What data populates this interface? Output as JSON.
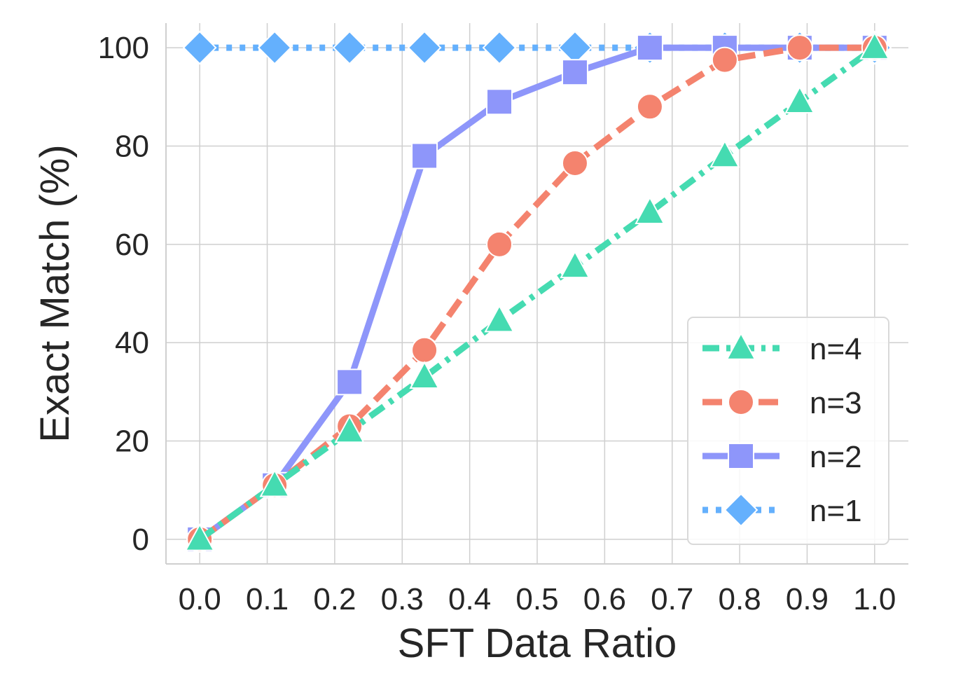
{
  "chart_data": {
    "type": "line",
    "xlabel": "SFT Data Ratio",
    "ylabel": "Exact Match (%)",
    "xlim": [
      -0.05,
      1.05
    ],
    "ylim": [
      -5,
      105
    ],
    "xticks": [
      0.0,
      0.1,
      0.2,
      0.3,
      0.4,
      0.5,
      0.6,
      0.7,
      0.8,
      0.9,
      1.0
    ],
    "xtick_labels": [
      "0.0",
      "0.1",
      "0.2",
      "0.3",
      "0.4",
      "0.5",
      "0.6",
      "0.7",
      "0.8",
      "0.9",
      "1.0"
    ],
    "yticks": [
      0,
      20,
      40,
      60,
      80,
      100
    ],
    "ytick_labels": [
      "0",
      "20",
      "40",
      "60",
      "80",
      "100"
    ],
    "grid": true,
    "legend_position": "lower-right",
    "x": [
      0.0,
      0.111,
      0.222,
      0.333,
      0.444,
      0.556,
      0.667,
      0.778,
      0.889,
      1.0
    ],
    "series": [
      {
        "name": "n=4",
        "color": "#45dbb1",
        "marker": "triangle",
        "line_style": "dashdot",
        "values": [
          0,
          11,
          22,
          33,
          44.5,
          55.5,
          66.5,
          78,
          89,
          100
        ]
      },
      {
        "name": "n=3",
        "color": "#f4836e",
        "marker": "circle",
        "line_style": "dashed",
        "values": [
          0,
          11,
          23,
          38.5,
          60,
          76.5,
          88,
          97.5,
          100,
          100
        ]
      },
      {
        "name": "n=2",
        "color": "#8e96fa",
        "marker": "square",
        "line_style": "solid",
        "values": [
          0,
          11,
          32,
          78,
          89,
          95,
          100,
          100,
          100,
          100
        ]
      },
      {
        "name": "n=1",
        "color": "#64b0fd",
        "marker": "diamond",
        "line_style": "dotted",
        "values": [
          100,
          100,
          100,
          100,
          100,
          100,
          100,
          100,
          100,
          100
        ]
      }
    ],
    "legend_order": [
      "n=4",
      "n=3",
      "n=2",
      "n=1"
    ]
  }
}
